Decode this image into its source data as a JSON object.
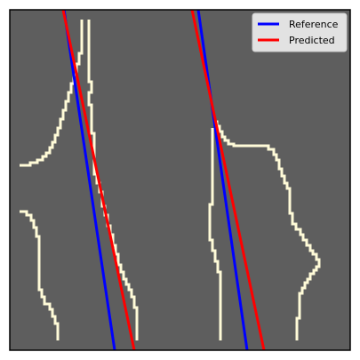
{
  "figure": {
    "background_color": "#5e5e5e",
    "contour_color": "#fffbd8",
    "frame_color": "#000000"
  },
  "legend": {
    "placement": "top-right",
    "entries": [
      {
        "label": "Reference",
        "color": "#0000ff"
      },
      {
        "label": "Predicted",
        "color": "#ff0000"
      }
    ]
  },
  "axes": {
    "ticks_shown": false,
    "grid": false
  }
}
